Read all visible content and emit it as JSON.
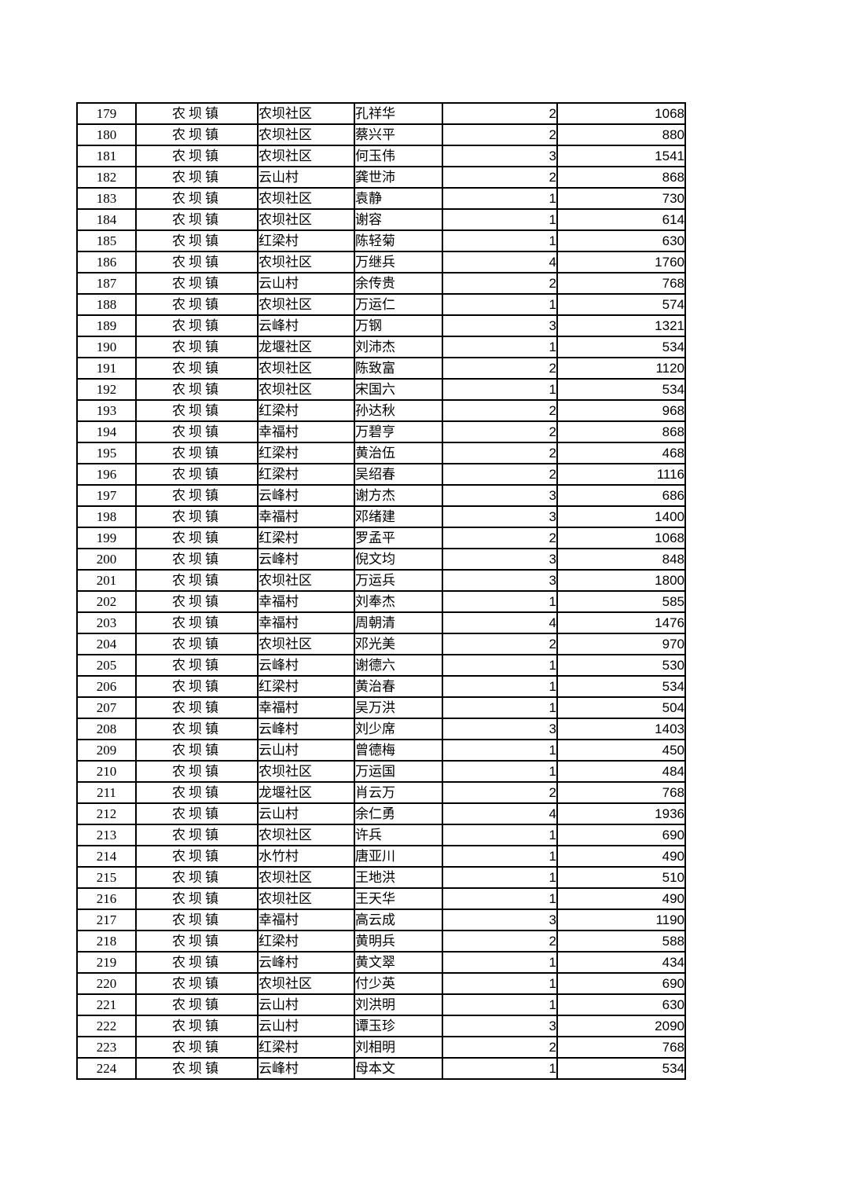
{
  "page": {
    "background_color": "#ffffff",
    "text_color": "#000000",
    "table_border_color": "#000000"
  },
  "table": {
    "row_count": 46,
    "first_row_number": "179",
    "last_row_number": "224",
    "rows": [
      [
        "179",
        "农坝镇",
        "农坝社区",
        "孔祥华",
        "2",
        "1068"
      ],
      [
        "180",
        "农坝镇",
        "农坝社区",
        "蔡兴平",
        "2",
        "880"
      ],
      [
        "181",
        "农坝镇",
        "农坝社区",
        "何玉伟",
        "3",
        "1541"
      ],
      [
        "182",
        "农坝镇",
        "云山村",
        "龚世沛",
        "2",
        "868"
      ],
      [
        "183",
        "农坝镇",
        "农坝社区",
        "袁静",
        "1",
        "730"
      ],
      [
        "184",
        "农坝镇",
        "农坝社区",
        "谢容",
        "1",
        "614"
      ],
      [
        "185",
        "农坝镇",
        "红梁村",
        "陈轻菊",
        "1",
        "630"
      ],
      [
        "186",
        "农坝镇",
        "农坝社区",
        "万继兵",
        "4",
        "1760"
      ],
      [
        "187",
        "农坝镇",
        "云山村",
        "余传贵",
        "2",
        "768"
      ],
      [
        "188",
        "农坝镇",
        "农坝社区",
        "万运仁",
        "1",
        "574"
      ],
      [
        "189",
        "农坝镇",
        "云峰村",
        "万钢",
        "3",
        "1321"
      ],
      [
        "190",
        "农坝镇",
        "龙堰社区",
        "刘沛杰",
        "1",
        "534"
      ],
      [
        "191",
        "农坝镇",
        "农坝社区",
        "陈致富",
        "2",
        "1120"
      ],
      [
        "192",
        "农坝镇",
        "农坝社区",
        "宋国六",
        "1",
        "534"
      ],
      [
        "193",
        "农坝镇",
        "红梁村",
        "孙达秋",
        "2",
        "968"
      ],
      [
        "194",
        "农坝镇",
        "幸福村",
        "万碧亨",
        "2",
        "868"
      ],
      [
        "195",
        "农坝镇",
        "红梁村",
        "黄治伍",
        "2",
        "468"
      ],
      [
        "196",
        "农坝镇",
        "红梁村",
        "吴绍春",
        "2",
        "1116"
      ],
      [
        "197",
        "农坝镇",
        "云峰村",
        "谢方杰",
        "3",
        "686"
      ],
      [
        "198",
        "农坝镇",
        "幸福村",
        "邓绪建",
        "3",
        "1400"
      ],
      [
        "199",
        "农坝镇",
        "红梁村",
        "罗孟平",
        "2",
        "1068"
      ],
      [
        "200",
        "农坝镇",
        "云峰村",
        "倪文均",
        "3",
        "848"
      ],
      [
        "201",
        "农坝镇",
        "农坝社区",
        "万运兵",
        "3",
        "1800"
      ],
      [
        "202",
        "农坝镇",
        "幸福村",
        "刘奉杰",
        "1",
        "585"
      ],
      [
        "203",
        "农坝镇",
        "幸福村",
        "周朝清",
        "4",
        "1476"
      ],
      [
        "204",
        "农坝镇",
        "农坝社区",
        "邓光美",
        "2",
        "970"
      ],
      [
        "205",
        "农坝镇",
        "云峰村",
        "谢德六",
        "1",
        "530"
      ],
      [
        "206",
        "农坝镇",
        "红梁村",
        "黄治春",
        "1",
        "534"
      ],
      [
        "207",
        "农坝镇",
        "幸福村",
        "吴万洪",
        "1",
        "504"
      ],
      [
        "208",
        "农坝镇",
        "云峰村",
        "刘少席",
        "3",
        "1403"
      ],
      [
        "209",
        "农坝镇",
        "云山村",
        "曾德梅",
        "1",
        "450"
      ],
      [
        "210",
        "农坝镇",
        "农坝社区",
        "万运国",
        "1",
        "484"
      ],
      [
        "211",
        "农坝镇",
        "龙堰社区",
        "肖云万",
        "2",
        "768"
      ],
      [
        "212",
        "农坝镇",
        "云山村",
        "余仁勇",
        "4",
        "1936"
      ],
      [
        "213",
        "农坝镇",
        "农坝社区",
        "许兵",
        "1",
        "690"
      ],
      [
        "214",
        "农坝镇",
        "水竹村",
        "唐亚川",
        "1",
        "490"
      ],
      [
        "215",
        "农坝镇",
        "农坝社区",
        "王地洪",
        "1",
        "510"
      ],
      [
        "216",
        "农坝镇",
        "农坝社区",
        "王天华",
        "1",
        "490"
      ],
      [
        "217",
        "农坝镇",
        "幸福村",
        "高云成",
        "3",
        "1190"
      ],
      [
        "218",
        "农坝镇",
        "红梁村",
        "黄明兵",
        "2",
        "588"
      ],
      [
        "219",
        "农坝镇",
        "云峰村",
        "黄文翠",
        "1",
        "434"
      ],
      [
        "220",
        "农坝镇",
        "农坝社区",
        "付少英",
        "1",
        "690"
      ],
      [
        "221",
        "农坝镇",
        "云山村",
        "刘洪明",
        "1",
        "630"
      ],
      [
        "222",
        "农坝镇",
        "云山村",
        "谭玉珍",
        "3",
        "2090"
      ],
      [
        "223",
        "农坝镇",
        "红梁村",
        "刘相明",
        "2",
        "768"
      ],
      [
        "224",
        "农坝镇",
        "云峰村",
        "母本文",
        "1",
        "534"
      ]
    ]
  }
}
